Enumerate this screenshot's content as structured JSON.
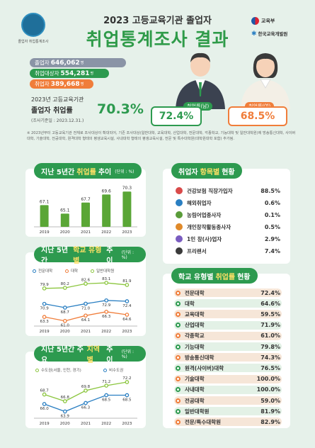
{
  "header": {
    "badge_text": "졸업자 취업통계조사",
    "subtitle": "2023 고등교육기관 졸업자",
    "title": "취업통계조사 결과",
    "logo_ministry": "교육부",
    "logo_institute": "한국교육개발원"
  },
  "stats": {
    "graduates_label": "졸업자",
    "graduates_value": "646,062",
    "eligible_label": "취업대상자",
    "eligible_value": "554,281",
    "employed_label": "취업자",
    "employed_value": "389,668",
    "unit": "명"
  },
  "rate": {
    "label": "2023년 고등교육기관",
    "big_label": "졸업자 취업률",
    "value": "70.3%",
    "date": "(조사기준일 : 2023.12.31.)"
  },
  "gender": {
    "male_label": "취업률(남)",
    "male_value": "72.4%",
    "female_label": "취업률(여)",
    "female_value": "68.5%"
  },
  "note": "※ 2023년부터 고등교육기관 전체로 조사대상이 확대되어, 기존 조사대상(일반대학, 교육대학, 산업대학, 전문대학, 각종학교, 기능대학 및 일반대학원)에 방송통신대학, 사이버대학, 기술대학, 전공대학, 원격대학 형태의 평생교육시설, 사내대학 형태의 평생교육시설, 전문 및 특수대학원(대학원대학 포함) 추가됨.",
  "panel_trend": {
    "title_pre": "지난 5년간",
    "title_hl": "취업률",
    "title_post": "추이",
    "unit": "(단위 : %)"
  },
  "panel_type_trend": {
    "title_pre": "지난 5년간",
    "title_hl": "학교 유형별",
    "title_post": "추이",
    "unit": "(단위 : %)",
    "legend": [
      "전문대학",
      "대학",
      "일반대학원"
    ]
  },
  "panel_region": {
    "title_pre": "지난 5년간 주요",
    "title_hl": "지역별",
    "title_post": "추이",
    "unit": "(단위 : %)",
    "legend": [
      "수도권(서울, 인천, 경기)",
      "비수도권"
    ]
  },
  "panel_items": {
    "title_pre": "취업자",
    "title_hl": "항목별",
    "title_post": "현황",
    "items": [
      {
        "label": "건강보험 직장가입자",
        "value": "88.5%",
        "icon": "hospital-icon"
      },
      {
        "label": "해외취업자",
        "value": "0.6%",
        "icon": "globe-icon"
      },
      {
        "label": "농림어업종사자",
        "value": "0.1%",
        "icon": "tractor-icon"
      },
      {
        "label": "개인창작활동종사자",
        "value": "0.5%",
        "icon": "palette-icon"
      },
      {
        "label": "1인 창(사)업자",
        "value": "2.9%",
        "icon": "person-icon"
      },
      {
        "label": "프리랜서",
        "value": "7.4%",
        "icon": "laptop-icon"
      }
    ]
  },
  "panel_school": {
    "title_pre": "학교 유형별",
    "title_hl": "취업률",
    "title_post": "현황",
    "items": [
      {
        "label": "전문대학",
        "value": "72.4%"
      },
      {
        "label": "대학",
        "value": "64.6%"
      },
      {
        "label": "교육대학",
        "value": "59.5%"
      },
      {
        "label": "산업대학",
        "value": "71.9%"
      },
      {
        "label": "각종학교",
        "value": "61.0%"
      },
      {
        "label": "기능대학",
        "value": "79.8%"
      },
      {
        "label": "방송통신대학",
        "value": "74.3%"
      },
      {
        "label": "원격(사이버)대학",
        "value": "76.5%"
      },
      {
        "label": "기술대학",
        "value": "100.0%"
      },
      {
        "label": "사내대학",
        "value": "100.0%"
      },
      {
        "label": "전공대학",
        "value": "59.0%"
      },
      {
        "label": "일반대학원",
        "value": "81.9%"
      },
      {
        "label": "전문/특수대학원",
        "value": "82.9%"
      }
    ]
  },
  "colors": {
    "green": "#2d9a4f",
    "orange": "#f07d3a",
    "blue": "#2a7fc2",
    "lightgreen": "#8cc63f"
  },
  "chart_data": [
    {
      "type": "bar",
      "categories": [
        "2019",
        "2020",
        "2021",
        "2022",
        "2023"
      ],
      "values": [
        67.1,
        65.1,
        67.7,
        69.6,
        70.3
      ],
      "ylim": [
        62,
        72
      ]
    },
    {
      "type": "line",
      "categories": [
        "2019",
        "2020",
        "2021",
        "2022",
        "2023"
      ],
      "series": [
        {
          "name": "전문대학",
          "values": [
            70.9,
            68.7,
            71.0,
            72.9,
            72.4
          ]
        },
        {
          "name": "대학",
          "values": [
            63.3,
            61.0,
            64.1,
            66.3,
            64.6
          ]
        },
        {
          "name": "일반대학원",
          "values": [
            79.9,
            80.2,
            82.6,
            83.1,
            81.9
          ]
        }
      ],
      "ylim": [
        58,
        86
      ]
    },
    {
      "type": "line",
      "categories": [
        "2019",
        "2020",
        "2021",
        "2022",
        "2023"
      ],
      "series": [
        {
          "name": "수도권(서울, 인천, 경기)",
          "values": [
            68.7,
            66.8,
            69.8,
            71.2,
            72.2
          ]
        },
        {
          "name": "비수도권",
          "values": [
            66.0,
            63.9,
            66.3,
            68.5,
            68.5
          ]
        }
      ],
      "ylim": [
        62,
        74
      ]
    }
  ]
}
